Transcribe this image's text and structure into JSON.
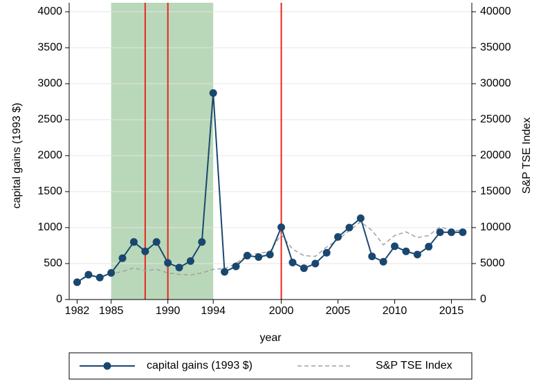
{
  "chart_data": {
    "type": "line",
    "x": [
      1982,
      1983,
      1984,
      1985,
      1986,
      1987,
      1988,
      1989,
      1990,
      1991,
      1992,
      1993,
      1994,
      1995,
      1996,
      1997,
      1998,
      1999,
      2000,
      2001,
      2002,
      2003,
      2004,
      2005,
      2006,
      2007,
      2008,
      2009,
      2010,
      2011,
      2012,
      2013,
      2014,
      2015,
      2016
    ],
    "series": [
      {
        "name": "capital gains (1993 $)",
        "color": "#1a476f",
        "marker": true,
        "dashed": false,
        "values": [
          240,
          345,
          305,
          370,
          575,
          800,
          670,
          800,
          510,
          445,
          535,
          800,
          2870,
          385,
          460,
          610,
          590,
          625,
          1005,
          515,
          435,
          500,
          650,
          870,
          1000,
          1130,
          600,
          525,
          740,
          670,
          625,
          735,
          935,
          935,
          935
        ]
      },
      {
        "name": "S&P TSE Index",
        "color": "#a0a0a0",
        "marker": false,
        "dashed": true,
        "axis": "y2",
        "values": [
          2400,
          3300,
          3100,
          3600,
          3900,
          4400,
          4000,
          4200,
          3700,
          3500,
          3400,
          3700,
          4200,
          4300,
          5000,
          6200,
          6400,
          6700,
          9000,
          7000,
          6100,
          6000,
          7300,
          8300,
          9600,
          10800,
          9600,
          7600,
          8900,
          9400,
          8600,
          8900,
          10100,
          9600,
          9600
        ]
      }
    ],
    "xlabel": "year",
    "ylabel": "capital gains (1993 $)",
    "y2label": "S&P TSE Index",
    "xlim": [
      1981.3,
      2016.8
    ],
    "xticks": [
      1982,
      1985,
      1990,
      1994,
      2000,
      2005,
      2010,
      2015
    ],
    "ylim": [
      0,
      4000
    ],
    "yticks": [
      0,
      500,
      1000,
      1500,
      2000,
      2500,
      3000,
      3500,
      4000
    ],
    "y2lim": [
      0,
      40000
    ],
    "y2ticks": [
      0,
      5000,
      10000,
      15000,
      20000,
      25000,
      30000,
      35000,
      40000
    ],
    "grid": true,
    "shaded": {
      "range": [
        1985,
        1994
      ],
      "color": "#b9d8b9"
    },
    "vlines": {
      "values": [
        1988,
        1990,
        2000
      ],
      "color": "#e8251f"
    },
    "legend": "bottom"
  }
}
